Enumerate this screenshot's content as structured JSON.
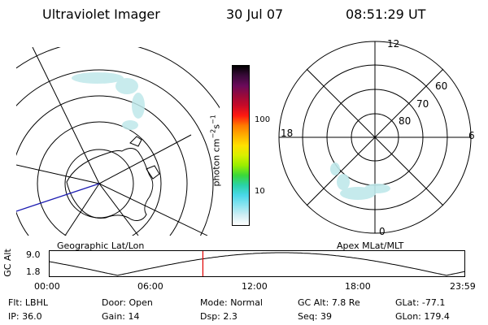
{
  "header": {
    "instrument": "Ultraviolet Imager",
    "date": "30 Jul 07",
    "time": "08:51:29 UT"
  },
  "left_map": {
    "label": "Geographic Lat/Lon"
  },
  "right_map": {
    "label": "Apex MLat/MLT",
    "mlt_labels": [
      "12",
      "6",
      "0",
      "18"
    ],
    "lat_labels": [
      "80",
      "70",
      "60"
    ]
  },
  "colorbar": {
    "unit": "photon cm^-2 s^-1",
    "ticks": [
      "100",
      "10"
    ],
    "colors": [
      "#000000",
      "#3a0a3a",
      "#6a0a5a",
      "#9a0a3a",
      "#c80a28",
      "#ff1a10",
      "#ff7a00",
      "#ffb000",
      "#ffe000",
      "#d8f000",
      "#9aee00",
      "#3ad83a",
      "#2ad2a8",
      "#4ad8e8",
      "#8ae4f0",
      "#d0eef4",
      "#ffffff"
    ]
  },
  "altitude_plot": {
    "axis_label": "GC Alt",
    "ymax": "9.0",
    "ymin": "1.8",
    "time_ticks": [
      "00:00",
      "06:00",
      "12:00",
      "18:00",
      "23:59"
    ],
    "current_time_fraction": 0.37,
    "marker_color": "#e00000"
  },
  "status": {
    "row1": [
      {
        "key": "Flt:",
        "value": "LBHL"
      },
      {
        "key": "Door:",
        "value": "Open"
      },
      {
        "key": "Mode:",
        "value": "Normal"
      },
      {
        "key": "GC Alt:",
        "value": "7.8 Re"
      },
      {
        "key": "GLat:",
        "value": "-77.1"
      }
    ],
    "row2": [
      {
        "key": "IP:",
        "value": "36.0"
      },
      {
        "key": "Gain:",
        "value": "14"
      },
      {
        "key": "Dsp:",
        "value": "2.3"
      },
      {
        "key": "Seq:",
        "value": "39"
      },
      {
        "key": "GLon:",
        "value": "179.4"
      }
    ]
  }
}
